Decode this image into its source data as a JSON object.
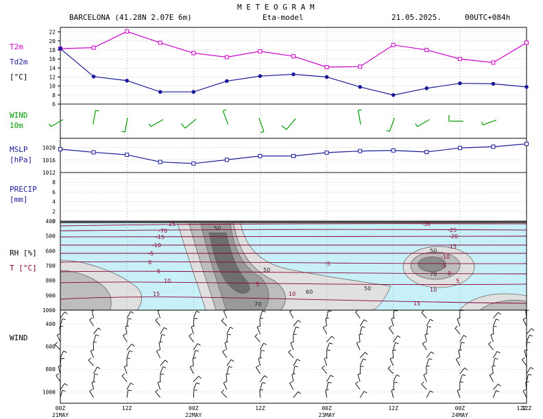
{
  "header": {
    "title": "M E T E O G R A M",
    "location": "BARCELONA (41.28N  2.07E  6m)",
    "model": "Eta-model",
    "date": "21.05.2025.",
    "run": "00UTC+084h"
  },
  "labels": {
    "t2m": "T2m",
    "td2m": "Td2m",
    "temp_unit": "[°C]",
    "wind10_a": "WIND",
    "wind10_b": "10m",
    "mslp": "MSLP",
    "mslp_unit": "[hPa]",
    "precip": "PRECIP",
    "precip_unit": "[mm]",
    "rh": "RH [%]",
    "t": "T [°C]",
    "wind": "WIND"
  },
  "x_axis": {
    "ticks": [
      {
        "top": "00Z",
        "bottom": "21MAY"
      },
      {
        "top": "12Z",
        "bottom": ""
      },
      {
        "top": "00Z",
        "bottom": "22MAY"
      },
      {
        "top": "12Z",
        "bottom": ""
      },
      {
        "top": "00Z",
        "bottom": "23MAY"
      },
      {
        "top": "12Z",
        "bottom": ""
      },
      {
        "top": "00Z",
        "bottom": "24MAY"
      },
      {
        "top": "12Z",
        "bottom": ""
      }
    ]
  },
  "colors": {
    "t2m": "#cc00cc",
    "td2m": "#1a1a99",
    "wind10": "#009900",
    "mslp": "#1a1a99",
    "contour_t": "#880033",
    "rh_fill": "#c8f0f8"
  },
  "chart_data": [
    {
      "type": "line",
      "name": "temperature",
      "x": [
        0,
        6,
        12,
        18,
        24,
        30,
        36,
        42,
        48,
        54,
        60,
        66,
        72,
        78,
        84
      ],
      "series": [
        {
          "name": "T2m",
          "values": [
            18.3,
            18.5,
            22.1,
            19.6,
            17.3,
            16.4,
            17.7,
            16.6,
            14.2,
            14.3,
            19.1,
            18.0,
            16.0,
            15.2,
            19.6
          ]
        },
        {
          "name": "Td2m",
          "values": [
            18.3,
            12.1,
            11.2,
            8.7,
            8.7,
            11.1,
            12.2,
            12.6,
            12.0,
            9.8,
            8.0,
            9.5,
            10.6,
            10.5,
            9.8
          ]
        }
      ],
      "ylim": [
        6,
        23
      ],
      "yticks": [
        6,
        8,
        10,
        12,
        14,
        16,
        18,
        20,
        22
      ]
    },
    {
      "type": "line",
      "name": "wind10m",
      "x": [
        0,
        6,
        12,
        18,
        24,
        30,
        36,
        42,
        48,
        54,
        60,
        66,
        72,
        78,
        84
      ],
      "barbs": [
        {
          "dir": 240,
          "speed": 5
        },
        {
          "dir": 10,
          "speed": 5
        },
        {
          "dir": 190,
          "speed": 5
        },
        {
          "dir": 240,
          "speed": 5
        },
        {
          "dir": 230,
          "speed": 10
        },
        {
          "dir": 340,
          "speed": 5
        },
        {
          "dir": 160,
          "speed": 5
        },
        {
          "dir": 220,
          "speed": 10
        },
        {
          "dir": 0,
          "speed": 0
        },
        {
          "dir": 350,
          "speed": 5
        },
        {
          "dir": 200,
          "speed": 5
        },
        {
          "dir": 240,
          "speed": 5
        },
        {
          "dir": 270,
          "speed": 10
        },
        {
          "dir": 250,
          "speed": 5
        },
        {
          "dir": 0,
          "speed": 0
        }
      ]
    },
    {
      "type": "line",
      "name": "mslp",
      "x": [
        0,
        6,
        12,
        18,
        24,
        30,
        36,
        42,
        48,
        54,
        60,
        66,
        72,
        78,
        84
      ],
      "series": [
        {
          "name": "MSLP",
          "values": [
            1019.5,
            1018.5,
            1017.7,
            1015.4,
            1014.9,
            1016.1,
            1017.3,
            1017.3,
            1018.4,
            1018.9,
            1019.1,
            1018.6,
            1019.9,
            1020.3,
            1021.2
          ]
        }
      ],
      "ylim": [
        1012,
        1023
      ],
      "yticks": [
        1012,
        1016,
        1020
      ]
    },
    {
      "type": "bar",
      "name": "precip",
      "x": [
        0,
        6,
        12,
        18,
        24,
        30,
        36,
        42,
        48,
        54,
        60,
        66,
        72,
        78,
        84
      ],
      "values": [
        0,
        0,
        0,
        0,
        0,
        0,
        0,
        0,
        0,
        0,
        0,
        0,
        0,
        0,
        0
      ],
      "ylim": [
        0,
        10
      ],
      "yticks": [
        0,
        2,
        4,
        6,
        8
      ]
    },
    {
      "type": "heatmap",
      "name": "rh_temperature_cross_section",
      "yticks": [
        400,
        500,
        600,
        700,
        800,
        900,
        1000
      ],
      "ylim": [
        1000,
        400
      ],
      "t_contour_labels": [
        "-25",
        "-70",
        "-15",
        "-10",
        "-5",
        "0",
        "5",
        "10",
        "15",
        "-30",
        "-25",
        "-20",
        "-15",
        "-10",
        "-5",
        "0",
        "5",
        "10",
        "15",
        "-5",
        "5",
        "10"
      ],
      "rh_contour_labels": [
        "50",
        "50",
        "60",
        "70",
        "50",
        "50",
        "70"
      ]
    },
    {
      "type": "scatter",
      "name": "wind_profile",
      "yticks": [
        400,
        600,
        800,
        1000
      ],
      "ylim": [
        1100,
        280
      ]
    }
  ]
}
